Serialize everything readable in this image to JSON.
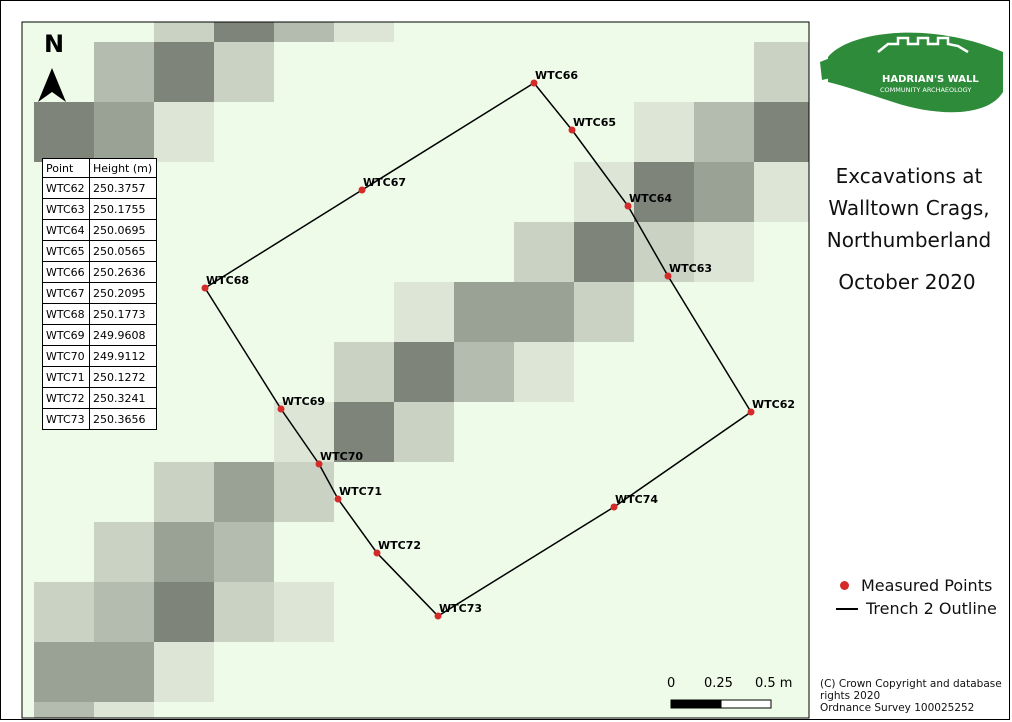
{
  "map": {
    "north_letter": "N",
    "points": [
      {
        "id": "WTC62",
        "height": "250.3757"
      },
      {
        "id": "WTC63",
        "height": "250.1755"
      },
      {
        "id": "WTC64",
        "height": "250.0695"
      },
      {
        "id": "WTC65",
        "height": "250.0565"
      },
      {
        "id": "WTC66",
        "height": "250.2636"
      },
      {
        "id": "WTC67",
        "height": "250.2095"
      },
      {
        "id": "WTC68",
        "height": "250.1773"
      },
      {
        "id": "WTC69",
        "height": "249.9608"
      },
      {
        "id": "WTC70",
        "height": "249.9112"
      },
      {
        "id": "WTC71",
        "height": "250.1272"
      },
      {
        "id": "WTC72",
        "height": "250.3241"
      },
      {
        "id": "WTC73",
        "height": "250.3656"
      },
      {
        "id": "WTC74",
        "height": ""
      }
    ],
    "table_headers": {
      "point": "Point",
      "height": "Height (m)"
    },
    "scale_labels": [
      "0",
      "0.25",
      "0.5 m"
    ],
    "colors": {
      "point": "#d42a2a",
      "outline": "#000000",
      "background": "#eefbe9"
    }
  },
  "logo": {
    "line1": "HADRIAN'S WALL",
    "line2": "COMMUNITY ARCHAEOLOGY",
    "colors": {
      "green": "#2e8b3a"
    }
  },
  "title": {
    "line1": "Excavations at",
    "line2": "Walltown Crags,",
    "line3": "Northumberland",
    "date": "October 2020"
  },
  "legend": {
    "points_label": "Measured Points",
    "outline_label": "Trench 2 Outline"
  },
  "copyright": {
    "line1": "(C) Crown Copyright and database",
    "line2": "rights 2020",
    "line3": "Ordnance Survey 100025252"
  }
}
